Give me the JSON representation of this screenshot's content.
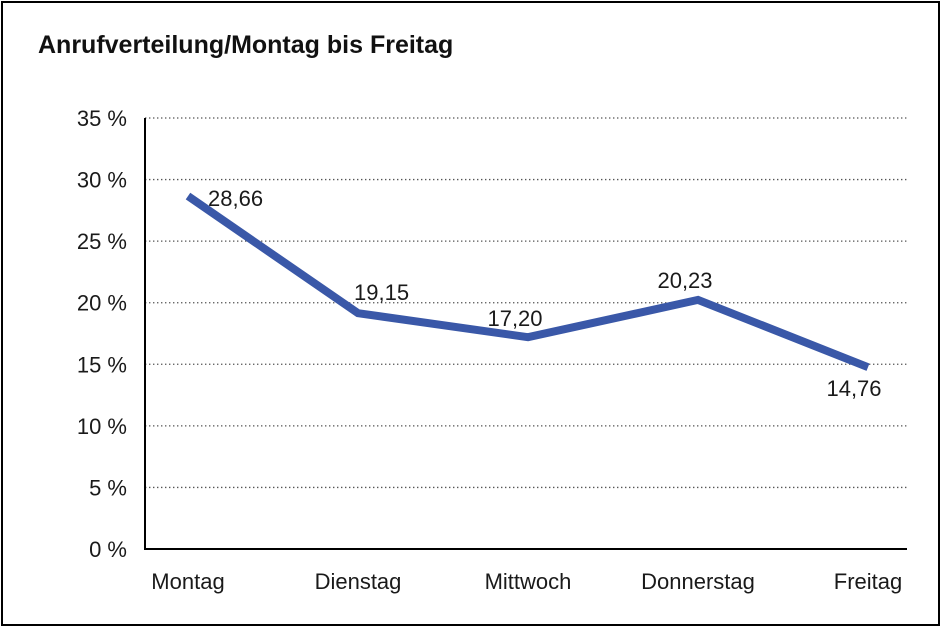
{
  "chart_data": {
    "type": "line",
    "title": "Anrufverteilung/Montag bis Freitag",
    "categories": [
      "Montag",
      "Dienstag",
      "Mittwoch",
      "Donnerstag",
      "Freitag"
    ],
    "series": [
      {
        "name": "Anrufverteilung",
        "values": [
          28.66,
          19.15,
          17.2,
          20.23,
          14.76
        ]
      }
    ],
    "point_labels": [
      "28,66",
      "19,15",
      "17,20",
      "20,23",
      "14,76"
    ],
    "y_ticks": [
      0,
      5,
      10,
      15,
      20,
      25,
      30,
      35
    ],
    "y_tick_labels": [
      "0 %",
      "5 %",
      "10 %",
      "15 %",
      "20 %",
      "25 %",
      "30 %",
      "35 %"
    ],
    "ylim": [
      0,
      35
    ],
    "xlabel": "",
    "ylabel": "",
    "legend": "none",
    "grid": "horizontal-dotted",
    "colors": {
      "line": "#3A58A8",
      "axis": "#000000",
      "gridline": "#555555",
      "text": "#1a1a1a",
      "background": "#ffffff",
      "border": "#000000"
    },
    "point_label_positions": [
      "right",
      "above-left-aligned",
      "above",
      "above",
      "below"
    ]
  }
}
